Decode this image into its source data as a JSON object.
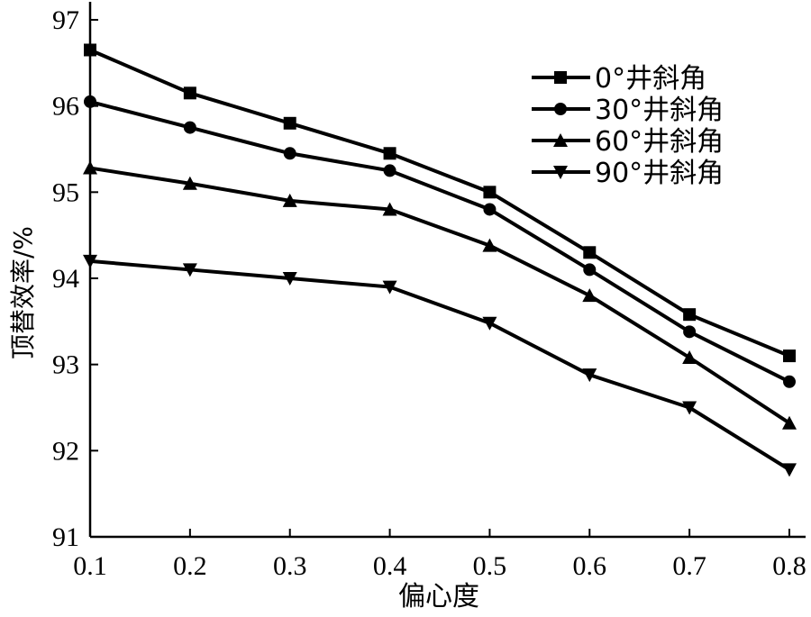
{
  "chart_data": {
    "type": "line",
    "xlabel": "偏心度",
    "ylabel": "顶替效率/%",
    "xlim": [
      0.1,
      0.8
    ],
    "ylim": [
      91,
      97
    ],
    "xticks": [
      "0.1",
      "0.2",
      "0.3",
      "0.4",
      "0.5",
      "0.6",
      "0.7",
      "0.8"
    ],
    "yticks": [
      "91",
      "92",
      "93",
      "94",
      "95",
      "96",
      "97"
    ],
    "x": [
      0.1,
      0.2,
      0.3,
      0.4,
      0.5,
      0.6,
      0.7,
      0.8
    ],
    "grid": false,
    "legend_position": "top-right",
    "series": [
      {
        "name": "0°井斜角",
        "marker": "square",
        "values": [
          96.65,
          96.15,
          95.8,
          95.45,
          95.0,
          94.3,
          93.58,
          93.1
        ]
      },
      {
        "name": "30°井斜角",
        "marker": "circle",
        "values": [
          96.05,
          95.75,
          95.45,
          95.25,
          94.8,
          94.1,
          93.38,
          92.8
        ]
      },
      {
        "name": "60°井斜角",
        "marker": "triangle-up",
        "values": [
          95.28,
          95.1,
          94.9,
          94.8,
          94.38,
          93.8,
          93.08,
          92.32
        ]
      },
      {
        "name": "90°井斜角",
        "marker": "triangle-down",
        "values": [
          94.2,
          94.1,
          94.0,
          93.9,
          93.48,
          92.88,
          92.5,
          91.78
        ]
      }
    ]
  }
}
